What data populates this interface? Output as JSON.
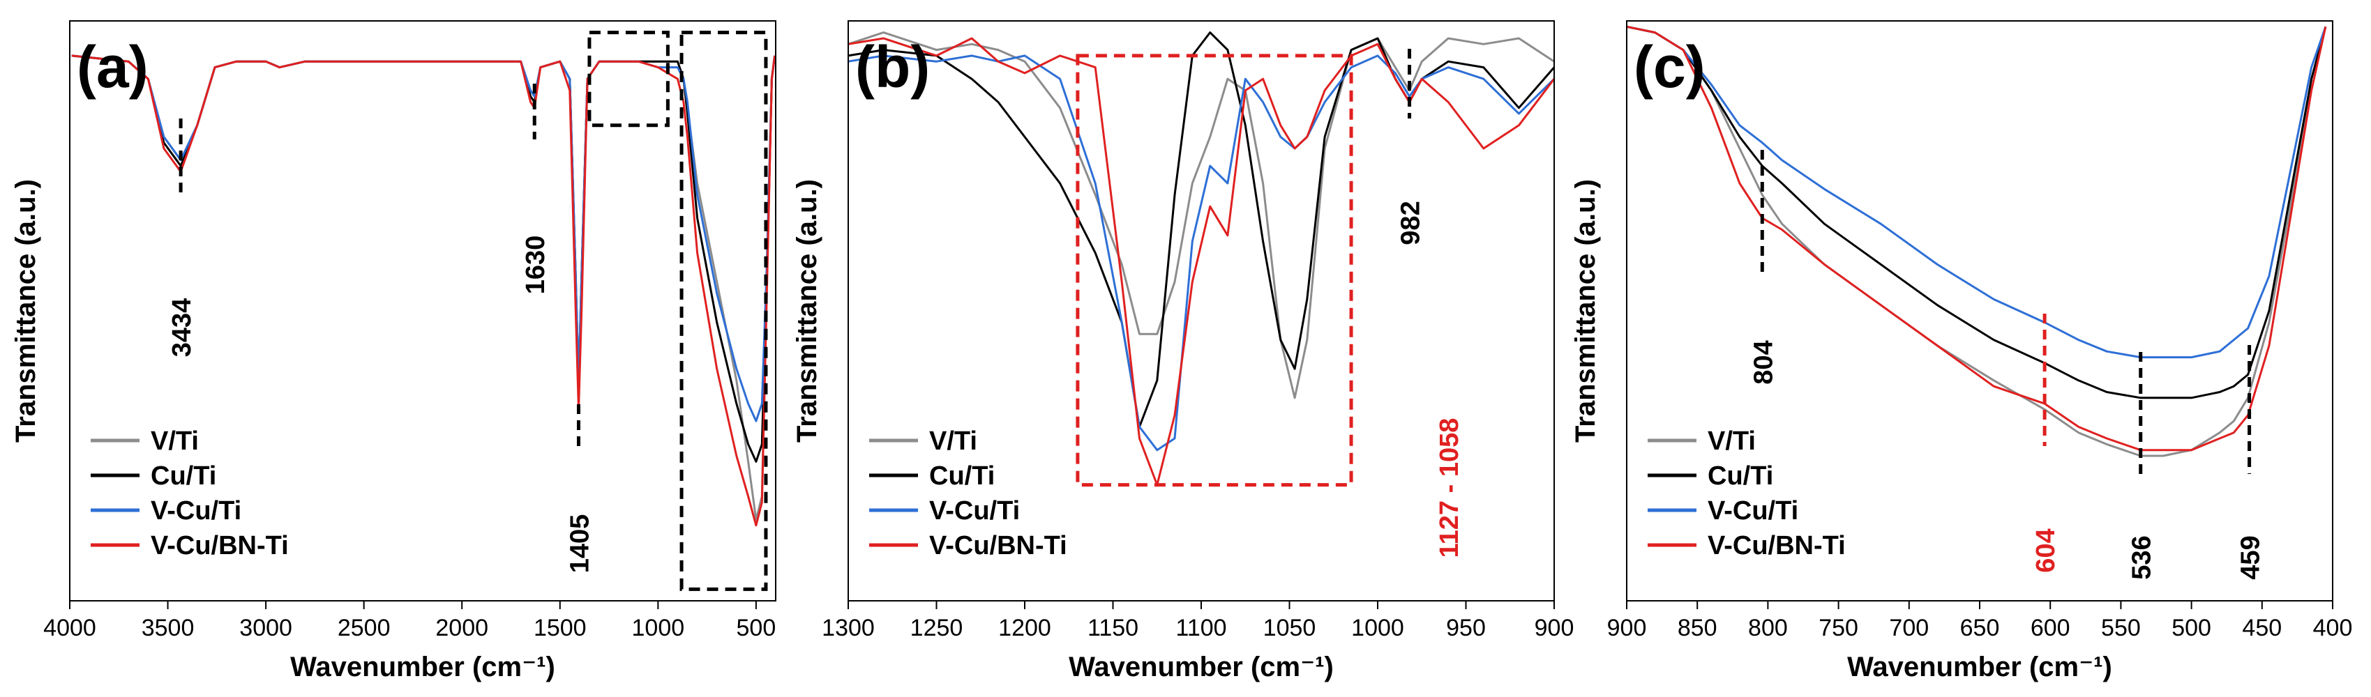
{
  "figure": {
    "ylabel": "Transmittance (a.u.)",
    "xlabel": "Wavenumber (cm⁻¹)",
    "legend": [
      "V/Ti",
      "Cu/Ti",
      "V-Cu/Ti",
      "V-Cu/BN-Ti"
    ],
    "colors": {
      "V/Ti": "#8c8c8c",
      "Cu/Ti": "#000000",
      "V-Cu/Ti": "#2e6fd6",
      "V-Cu/BN-Ti": "#e02020"
    }
  },
  "chart_data": [
    {
      "type": "line",
      "panel": "(a)",
      "title": "",
      "xlabel": "Wavenumber (cm⁻¹)",
      "ylabel": "Transmittance (a.u.)",
      "xlim": [
        4000,
        400
      ],
      "ylim": [
        0,
        1
      ],
      "xticks": [
        4000,
        3500,
        3000,
        2500,
        2000,
        1500,
        1000,
        500
      ],
      "series": [
        {
          "name": "V/Ti",
          "x": [
            3990,
            3700,
            3600,
            3520,
            3434,
            3350,
            3260,
            3150,
            3000,
            2930,
            2800,
            2000,
            1700,
            1650,
            1630,
            1600,
            1500,
            1450,
            1420,
            1405,
            1390,
            1360,
            1300,
            1200,
            1100,
            1000,
            950,
            900,
            870,
            850,
            800,
            700,
            600,
            540,
            500,
            470,
            445,
            420,
            405
          ],
          "y": [
            0.94,
            0.93,
            0.9,
            0.8,
            0.76,
            0.82,
            0.92,
            0.93,
            0.93,
            0.92,
            0.93,
            0.93,
            0.93,
            0.88,
            0.87,
            0.92,
            0.93,
            0.9,
            0.55,
            0.36,
            0.55,
            0.9,
            0.93,
            0.93,
            0.93,
            0.93,
            0.93,
            0.93,
            0.9,
            0.85,
            0.72,
            0.55,
            0.38,
            0.24,
            0.14,
            0.18,
            0.55,
            0.9,
            0.94
          ]
        },
        {
          "name": "Cu/Ti",
          "x": [
            3990,
            3700,
            3600,
            3520,
            3434,
            3350,
            3260,
            3150,
            3000,
            2930,
            2800,
            2000,
            1700,
            1650,
            1630,
            1600,
            1500,
            1450,
            1420,
            1405,
            1390,
            1360,
            1300,
            1200,
            1100,
            1000,
            950,
            900,
            870,
            850,
            800,
            700,
            600,
            540,
            500,
            470,
            445,
            420,
            405
          ],
          "y": [
            0.94,
            0.93,
            0.9,
            0.79,
            0.75,
            0.82,
            0.92,
            0.93,
            0.93,
            0.92,
            0.93,
            0.93,
            0.93,
            0.87,
            0.86,
            0.92,
            0.93,
            0.9,
            0.56,
            0.37,
            0.56,
            0.9,
            0.93,
            0.93,
            0.93,
            0.93,
            0.93,
            0.93,
            0.9,
            0.84,
            0.66,
            0.48,
            0.34,
            0.27,
            0.24,
            0.27,
            0.55,
            0.9,
            0.94
          ]
        },
        {
          "name": "V-Cu/Ti",
          "x": [
            3990,
            3700,
            3600,
            3520,
            3434,
            3350,
            3260,
            3150,
            3000,
            2930,
            2800,
            2000,
            1700,
            1650,
            1630,
            1600,
            1500,
            1450,
            1420,
            1405,
            1390,
            1360,
            1300,
            1200,
            1100,
            1000,
            950,
            900,
            870,
            850,
            800,
            700,
            600,
            540,
            500,
            470,
            445,
            420,
            405
          ],
          "y": [
            0.94,
            0.93,
            0.9,
            0.8,
            0.76,
            0.82,
            0.92,
            0.93,
            0.93,
            0.92,
            0.93,
            0.93,
            0.93,
            0.88,
            0.87,
            0.92,
            0.93,
            0.9,
            0.56,
            0.38,
            0.56,
            0.9,
            0.93,
            0.93,
            0.93,
            0.92,
            0.92,
            0.92,
            0.9,
            0.86,
            0.7,
            0.53,
            0.4,
            0.34,
            0.31,
            0.34,
            0.58,
            0.9,
            0.94
          ]
        },
        {
          "name": "V-Cu/BN-Ti",
          "x": [
            3990,
            3700,
            3600,
            3520,
            3434,
            3350,
            3260,
            3150,
            3000,
            2930,
            2800,
            2000,
            1700,
            1650,
            1630,
            1600,
            1500,
            1450,
            1420,
            1405,
            1390,
            1360,
            1300,
            1200,
            1100,
            1000,
            950,
            900,
            870,
            850,
            800,
            700,
            600,
            540,
            500,
            470,
            445,
            420,
            405
          ],
          "y": [
            0.94,
            0.93,
            0.9,
            0.78,
            0.74,
            0.82,
            0.92,
            0.93,
            0.93,
            0.92,
            0.93,
            0.93,
            0.93,
            0.86,
            0.85,
            0.92,
            0.93,
            0.88,
            0.5,
            0.33,
            0.5,
            0.9,
            0.93,
            0.93,
            0.93,
            0.92,
            0.91,
            0.9,
            0.86,
            0.8,
            0.6,
            0.4,
            0.25,
            0.18,
            0.13,
            0.17,
            0.53,
            0.9,
            0.94
          ]
        }
      ],
      "annotations": [
        {
          "text": "3434",
          "x": 3434,
          "color": "#000000"
        },
        {
          "text": "1630",
          "x": 1630,
          "color": "#000000"
        },
        {
          "text": "1405",
          "x": 1405,
          "color": "#000000"
        }
      ],
      "boxes": [
        {
          "x": [
            1350,
            950
          ],
          "y": [
            0.82,
            0.98
          ]
        },
        {
          "x": [
            880,
            450
          ],
          "y": [
            0.02,
            0.98
          ]
        }
      ],
      "legend_position": "bottom-left"
    },
    {
      "type": "line",
      "panel": "(b)",
      "title": "",
      "xlabel": "Wavenumber (cm⁻¹)",
      "ylabel": "Transmittance (a.u.)",
      "xlim": [
        1300,
        900
      ],
      "ylim": [
        0,
        1
      ],
      "xticks": [
        1300,
        1250,
        1200,
        1150,
        1100,
        1050,
        1000,
        950,
        900
      ],
      "series": [
        {
          "name": "V/Ti",
          "x": [
            1300,
            1280,
            1250,
            1230,
            1215,
            1200,
            1180,
            1160,
            1145,
            1135,
            1125,
            1115,
            1105,
            1095,
            1085,
            1075,
            1065,
            1055,
            1047,
            1040,
            1030,
            1015,
            1000,
            990,
            982,
            975,
            960,
            940,
            920,
            900
          ],
          "y": [
            0.96,
            0.98,
            0.95,
            0.96,
            0.95,
            0.93,
            0.85,
            0.7,
            0.58,
            0.46,
            0.46,
            0.55,
            0.72,
            0.8,
            0.9,
            0.88,
            0.72,
            0.45,
            0.35,
            0.45,
            0.78,
            0.95,
            0.97,
            0.92,
            0.88,
            0.93,
            0.97,
            0.96,
            0.97,
            0.93
          ]
        },
        {
          "name": "Cu/Ti",
          "x": [
            1300,
            1280,
            1250,
            1230,
            1215,
            1200,
            1180,
            1160,
            1145,
            1135,
            1125,
            1115,
            1105,
            1095,
            1085,
            1075,
            1065,
            1055,
            1047,
            1040,
            1030,
            1015,
            1000,
            990,
            982,
            975,
            960,
            940,
            920,
            900
          ],
          "y": [
            0.94,
            0.95,
            0.94,
            0.9,
            0.86,
            0.8,
            0.72,
            0.6,
            0.48,
            0.3,
            0.38,
            0.7,
            0.94,
            0.98,
            0.95,
            0.82,
            0.62,
            0.45,
            0.4,
            0.52,
            0.8,
            0.95,
            0.97,
            0.9,
            0.86,
            0.9,
            0.93,
            0.92,
            0.85,
            0.92
          ]
        },
        {
          "name": "V-Cu/Ti",
          "x": [
            1300,
            1280,
            1250,
            1230,
            1215,
            1200,
            1180,
            1160,
            1145,
            1135,
            1125,
            1115,
            1105,
            1095,
            1085,
            1075,
            1065,
            1055,
            1047,
            1040,
            1030,
            1015,
            1000,
            990,
            982,
            975,
            960,
            940,
            920,
            900
          ],
          "y": [
            0.93,
            0.94,
            0.93,
            0.94,
            0.93,
            0.94,
            0.9,
            0.72,
            0.48,
            0.3,
            0.26,
            0.28,
            0.62,
            0.75,
            0.72,
            0.9,
            0.86,
            0.8,
            0.78,
            0.8,
            0.86,
            0.92,
            0.94,
            0.91,
            0.87,
            0.9,
            0.92,
            0.9,
            0.84,
            0.9
          ]
        },
        {
          "name": "V-Cu/BN-Ti",
          "x": [
            1300,
            1280,
            1250,
            1230,
            1215,
            1200,
            1180,
            1160,
            1145,
            1135,
            1125,
            1115,
            1105,
            1095,
            1085,
            1075,
            1065,
            1055,
            1047,
            1040,
            1030,
            1015,
            1000,
            990,
            982,
            975,
            960,
            940,
            920,
            900
          ],
          "y": [
            0.96,
            0.97,
            0.94,
            0.97,
            0.93,
            0.91,
            0.94,
            0.92,
            0.55,
            0.28,
            0.2,
            0.32,
            0.55,
            0.68,
            0.63,
            0.88,
            0.9,
            0.82,
            0.78,
            0.8,
            0.88,
            0.94,
            0.96,
            0.9,
            0.86,
            0.9,
            0.86,
            0.78,
            0.82,
            0.9
          ]
        }
      ],
      "annotations": [
        {
          "text": "982",
          "x": 982,
          "color": "#000000"
        },
        {
          "text": "1127 - 1058",
          "x": 960,
          "color": "#e02020"
        }
      ],
      "boxes": [
        {
          "x": [
            1170,
            1015
          ],
          "y": [
            0.2,
            0.94
          ]
        }
      ],
      "legend_position": "bottom-left"
    },
    {
      "type": "line",
      "panel": "(c)",
      "title": "",
      "xlabel": "Wavenumber (cm⁻¹)",
      "ylabel": "Transmittance (a.u.)",
      "xlim": [
        900,
        400
      ],
      "ylim": [
        0,
        1
      ],
      "xticks": [
        900,
        850,
        800,
        750,
        700,
        650,
        600,
        550,
        500,
        450,
        400
      ],
      "series": [
        {
          "name": "V/Ti",
          "x": [
            900,
            880,
            860,
            840,
            820,
            804,
            790,
            760,
            720,
            680,
            640,
            604,
            580,
            560,
            536,
            520,
            500,
            480,
            470,
            460,
            445,
            430,
            415,
            405
          ],
          "y": [
            0.99,
            0.98,
            0.95,
            0.88,
            0.78,
            0.7,
            0.65,
            0.58,
            0.51,
            0.44,
            0.38,
            0.33,
            0.29,
            0.27,
            0.25,
            0.25,
            0.26,
            0.29,
            0.31,
            0.35,
            0.48,
            0.68,
            0.9,
            0.99
          ]
        },
        {
          "name": "Cu/Ti",
          "x": [
            900,
            880,
            860,
            840,
            820,
            804,
            790,
            760,
            720,
            680,
            640,
            604,
            580,
            560,
            536,
            520,
            500,
            480,
            470,
            460,
            445,
            430,
            415,
            405
          ],
          "y": [
            0.99,
            0.98,
            0.95,
            0.88,
            0.8,
            0.75,
            0.72,
            0.65,
            0.58,
            0.51,
            0.45,
            0.41,
            0.38,
            0.36,
            0.35,
            0.35,
            0.35,
            0.36,
            0.37,
            0.39,
            0.5,
            0.7,
            0.9,
            0.99
          ]
        },
        {
          "name": "V-Cu/Ti",
          "x": [
            900,
            880,
            860,
            840,
            820,
            804,
            790,
            760,
            720,
            680,
            640,
            604,
            580,
            560,
            536,
            520,
            500,
            480,
            470,
            460,
            445,
            430,
            415,
            405
          ],
          "y": [
            0.99,
            0.98,
            0.95,
            0.89,
            0.82,
            0.79,
            0.76,
            0.71,
            0.65,
            0.58,
            0.52,
            0.48,
            0.45,
            0.43,
            0.42,
            0.42,
            0.42,
            0.43,
            0.45,
            0.47,
            0.56,
            0.74,
            0.92,
            0.99
          ]
        },
        {
          "name": "V-Cu/BN-Ti",
          "x": [
            900,
            880,
            860,
            840,
            820,
            804,
            790,
            760,
            720,
            680,
            640,
            604,
            580,
            560,
            536,
            520,
            500,
            480,
            470,
            460,
            445,
            430,
            415,
            405
          ],
          "y": [
            0.99,
            0.98,
            0.95,
            0.85,
            0.72,
            0.66,
            0.64,
            0.58,
            0.51,
            0.44,
            0.37,
            0.34,
            0.3,
            0.28,
            0.26,
            0.26,
            0.26,
            0.28,
            0.29,
            0.32,
            0.44,
            0.66,
            0.88,
            0.99
          ]
        }
      ],
      "annotations": [
        {
          "text": "804",
          "x": 804,
          "color": "#000000"
        },
        {
          "text": "604",
          "x": 604,
          "color": "#e02020"
        },
        {
          "text": "536",
          "x": 536,
          "color": "#000000"
        },
        {
          "text": "459",
          "x": 459,
          "color": "#000000"
        }
      ],
      "legend_position": "bottom-left"
    }
  ]
}
